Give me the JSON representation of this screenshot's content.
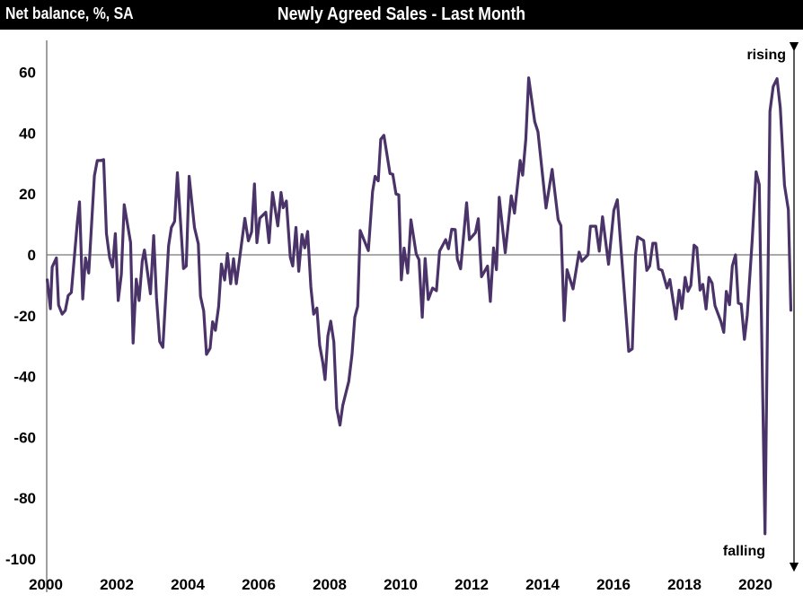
{
  "header": {
    "y_label": "Net balance, %, SA",
    "title": "Newly Agreed Sales - Last Month"
  },
  "chart_data": {
    "type": "line",
    "title": "Newly Agreed Sales - Last Month",
    "ylabel": "Net balance, %, SA",
    "xlabel": "",
    "xlim": [
      2000,
      2021.1
    ],
    "ylim": [
      -100,
      70
    ],
    "x_ticks": [
      "2000",
      "2002",
      "2004",
      "2006",
      "2008",
      "2010",
      "2012",
      "2014",
      "2016",
      "2018",
      "2020"
    ],
    "y_ticks": [
      "60",
      "40",
      "20",
      "0",
      "-20",
      "-40",
      "-60",
      "-80",
      "-100"
    ],
    "annotations": {
      "top": "rising",
      "bottom": "falling"
    },
    "line_color": "#4a3368",
    "series": [
      {
        "name": "Newly Agreed Sales",
        "points": [
          [
            2000.04,
            -8.2
          ],
          [
            2000.13,
            -17.7
          ],
          [
            2000.18,
            -4
          ],
          [
            2000.3,
            -1
          ],
          [
            2000.36,
            -16.5
          ],
          [
            2000.46,
            -19.5
          ],
          [
            2000.55,
            -18.3
          ],
          [
            2000.63,
            -13.4
          ],
          [
            2000.72,
            -12.4
          ],
          [
            2000.89,
            11
          ],
          [
            2000.95,
            17.4
          ],
          [
            2001.04,
            -14.5
          ],
          [
            2001.12,
            -1
          ],
          [
            2001.21,
            -6
          ],
          [
            2001.37,
            26
          ],
          [
            2001.45,
            31
          ],
          [
            2001.54,
            31
          ],
          [
            2001.63,
            31.3
          ],
          [
            2001.71,
            7
          ],
          [
            2001.8,
            -1
          ],
          [
            2001.88,
            -4
          ],
          [
            2001.96,
            7
          ],
          [
            2002.04,
            -15
          ],
          [
            2002.13,
            -6.4
          ],
          [
            2002.21,
            16.5
          ],
          [
            2002.39,
            4
          ],
          [
            2002.46,
            -29
          ],
          [
            2002.55,
            -8
          ],
          [
            2002.63,
            -15
          ],
          [
            2002.72,
            -2
          ],
          [
            2002.78,
            1.6
          ],
          [
            2002.95,
            -12.8
          ],
          [
            2003.04,
            6.3
          ],
          [
            2003.12,
            -14
          ],
          [
            2003.21,
            -28.5
          ],
          [
            2003.3,
            -30.4
          ],
          [
            2003.46,
            3
          ],
          [
            2003.54,
            9
          ],
          [
            2003.63,
            11
          ],
          [
            2003.71,
            27
          ],
          [
            2003.88,
            -4.5
          ],
          [
            2003.96,
            -3.7
          ],
          [
            2004.04,
            25.8
          ],
          [
            2004.19,
            9
          ],
          [
            2004.3,
            3.6
          ],
          [
            2004.36,
            -13.6
          ],
          [
            2004.45,
            -18.5
          ],
          [
            2004.53,
            -32.7
          ],
          [
            2004.63,
            -30.7
          ],
          [
            2004.7,
            -22
          ],
          [
            2004.78,
            -24.8
          ],
          [
            2004.87,
            -17
          ],
          [
            2004.95,
            -3
          ],
          [
            2005.04,
            -8.3
          ],
          [
            2005.12,
            0.4
          ],
          [
            2005.21,
            -9.5
          ],
          [
            2005.29,
            -1.3
          ],
          [
            2005.37,
            -9.5
          ],
          [
            2005.61,
            12
          ],
          [
            2005.71,
            4.6
          ],
          [
            2005.8,
            7.5
          ],
          [
            2005.88,
            23.3
          ],
          [
            2005.95,
            4
          ],
          [
            2006.03,
            12
          ],
          [
            2006.2,
            14
          ],
          [
            2006.29,
            4
          ],
          [
            2006.39,
            20.5
          ],
          [
            2006.54,
            9.5
          ],
          [
            2006.63,
            20.5
          ],
          [
            2006.69,
            15.5
          ],
          [
            2006.78,
            17.7
          ],
          [
            2006.89,
            -0.8
          ],
          [
            2006.96,
            -3.7
          ],
          [
            2007.05,
            9
          ],
          [
            2007.13,
            -5.4
          ],
          [
            2007.22,
            6.7
          ],
          [
            2007.3,
            2.3
          ],
          [
            2007.38,
            7.7
          ],
          [
            2007.47,
            -10.6
          ],
          [
            2007.55,
            -19.5
          ],
          [
            2007.64,
            -17.5
          ],
          [
            2007.72,
            -29.7
          ],
          [
            2007.81,
            -35.6
          ],
          [
            2007.87,
            -41
          ],
          [
            2007.95,
            -26.7
          ],
          [
            2008.03,
            -21.8
          ],
          [
            2008.12,
            -28.7
          ],
          [
            2008.2,
            -50.4
          ],
          [
            2008.29,
            -56
          ],
          [
            2008.37,
            -49.5
          ],
          [
            2008.54,
            -41.6
          ],
          [
            2008.63,
            -32.8
          ],
          [
            2008.71,
            -20.5
          ],
          [
            2008.79,
            -17
          ],
          [
            2008.86,
            8
          ],
          [
            2009.09,
            1.4
          ],
          [
            2009.21,
            20.8
          ],
          [
            2009.28,
            25.8
          ],
          [
            2009.37,
            24.3
          ],
          [
            2009.44,
            38
          ],
          [
            2009.53,
            39.3
          ],
          [
            2009.7,
            26.7
          ],
          [
            2009.78,
            26.5
          ],
          [
            2009.87,
            20
          ],
          [
            2009.95,
            19.7
          ],
          [
            2010.02,
            -8.2
          ],
          [
            2010.1,
            2.2
          ],
          [
            2010.2,
            -6
          ],
          [
            2010.29,
            11.5
          ],
          [
            2010.44,
            0.3
          ],
          [
            2010.52,
            -1.6
          ],
          [
            2010.61,
            -20.5
          ],
          [
            2010.69,
            -1.2
          ],
          [
            2010.78,
            -14.7
          ],
          [
            2010.9,
            -10.9
          ],
          [
            2011.01,
            -11.8
          ],
          [
            2011.1,
            1.2
          ],
          [
            2011.27,
            5
          ],
          [
            2011.35,
            2
          ],
          [
            2011.44,
            8.4
          ],
          [
            2011.54,
            8.3
          ],
          [
            2011.6,
            -1.4
          ],
          [
            2011.69,
            -4.6
          ],
          [
            2011.86,
            17.1
          ],
          [
            2011.94,
            5
          ],
          [
            2012.11,
            7.3
          ],
          [
            2012.19,
            11.9
          ],
          [
            2012.28,
            -7.2
          ],
          [
            2012.45,
            -3.7
          ],
          [
            2012.53,
            -15.3
          ],
          [
            2012.62,
            2.3
          ],
          [
            2012.7,
            -4.9
          ],
          [
            2012.78,
            18.9
          ],
          [
            2012.95,
            0.7
          ],
          [
            2013.12,
            19.4
          ],
          [
            2013.21,
            13.7
          ],
          [
            2013.37,
            31
          ],
          [
            2013.44,
            26.2
          ],
          [
            2013.53,
            38
          ],
          [
            2013.61,
            58.2
          ],
          [
            2013.78,
            43.8
          ],
          [
            2013.87,
            40.5
          ],
          [
            2014.1,
            15.4
          ],
          [
            2014.27,
            28.1
          ],
          [
            2014.44,
            11.6
          ],
          [
            2014.52,
            9.6
          ],
          [
            2014.61,
            -21.6
          ],
          [
            2014.69,
            -4.9
          ],
          [
            2014.86,
            -11.2
          ],
          [
            2015.03,
            0.9
          ],
          [
            2015.11,
            -2.1
          ],
          [
            2015.28,
            0
          ],
          [
            2015.35,
            9.4
          ],
          [
            2015.5,
            9.4
          ],
          [
            2015.6,
            1.2
          ],
          [
            2015.69,
            12.5
          ],
          [
            2015.86,
            -3.1
          ],
          [
            2016.01,
            14.6
          ],
          [
            2016.11,
            18.1
          ],
          [
            2016.43,
            -31.7
          ],
          [
            2016.53,
            -30.9
          ],
          [
            2016.62,
            -0.2
          ],
          [
            2016.68,
            5.9
          ],
          [
            2016.85,
            4.7
          ],
          [
            2016.94,
            -5.1
          ],
          [
            2017.02,
            -3.7
          ],
          [
            2017.11,
            3.8
          ],
          [
            2017.19,
            3.8
          ],
          [
            2017.27,
            -4.6
          ],
          [
            2017.37,
            -5.1
          ],
          [
            2017.51,
            -10.9
          ],
          [
            2017.59,
            -8.1
          ],
          [
            2017.76,
            -21.1
          ],
          [
            2017.85,
            -11.6
          ],
          [
            2017.93,
            -17.6
          ],
          [
            2018.02,
            -7.4
          ],
          [
            2018.1,
            -12
          ],
          [
            2018.18,
            -10.1
          ],
          [
            2018.27,
            3.2
          ],
          [
            2018.35,
            2.4
          ],
          [
            2018.44,
            -11.6
          ],
          [
            2018.52,
            -9.7
          ],
          [
            2018.61,
            -17.8
          ],
          [
            2018.69,
            -7.4
          ],
          [
            2018.78,
            -9.3
          ],
          [
            2018.86,
            -16.7
          ],
          [
            2019.03,
            -22
          ],
          [
            2019.11,
            -25.5
          ],
          [
            2019.18,
            -12
          ],
          [
            2019.27,
            -16.4
          ],
          [
            2019.35,
            -3.7
          ],
          [
            2019.44,
            0
          ],
          [
            2019.52,
            -15.9
          ],
          [
            2019.6,
            -16.2
          ],
          [
            2019.69,
            -27.8
          ],
          [
            2019.77,
            -19.9
          ],
          [
            2019.91,
            4.6
          ],
          [
            2020.02,
            27.3
          ],
          [
            2020.11,
            23.1
          ],
          [
            2020.27,
            -91.7
          ],
          [
            2020.41,
            47.2
          ],
          [
            2020.5,
            55.3
          ],
          [
            2020.61,
            57.9
          ],
          [
            2020.7,
            48.4
          ],
          [
            2020.82,
            22.9
          ],
          [
            2020.93,
            14.8
          ],
          [
            2021.0,
            -18.2
          ]
        ]
      }
    ]
  }
}
